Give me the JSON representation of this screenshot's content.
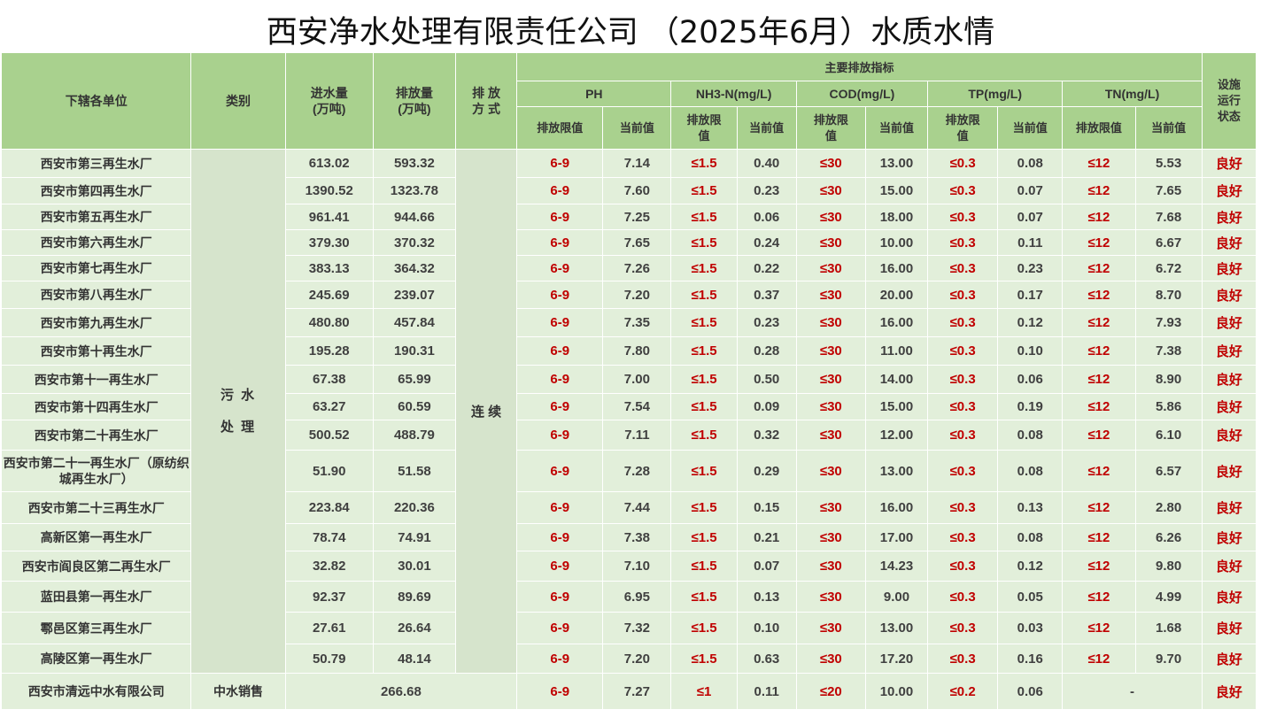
{
  "title": "西安净水处理有限责任公司 （2025年6月）水质水情",
  "headers": {
    "unit": "下辖各单位",
    "category": "类别",
    "inflow": "进水量\n(万吨)",
    "discharge": "排放量\n(万吨)",
    "method": "排 放\n方 式",
    "main_indicators": "主要排放指标",
    "status": "设施\n运行\n状态",
    "groups": [
      "PH",
      "NH3-N(mg/L)",
      "COD(mg/L)",
      "TP(mg/L)",
      "TN(mg/L)"
    ],
    "sub": [
      [
        "排放限值",
        "当前值"
      ],
      [
        "排放限\n值",
        "当前值"
      ],
      [
        "排放限\n值",
        "当前值"
      ],
      [
        "排放限\n值",
        "当前值"
      ],
      [
        "排放限值",
        "当前值"
      ]
    ]
  },
  "category_sewage": [
    "污 水",
    "处 理"
  ],
  "method_value": "连 续",
  "rows": [
    {
      "name": "西安市第三再生水厂",
      "in": "613.02",
      "out": "593.32",
      "ph_l": "6-9",
      "ph": "7.14",
      "nh_l": "≤1.5",
      "nh": "0.40",
      "cod_l": "≤30",
      "cod": "13.00",
      "tp_l": "≤0.3",
      "tp": "0.08",
      "tn_l": "≤12",
      "tn": "5.53",
      "status": "良好"
    },
    {
      "name": "西安市第四再生水厂",
      "in": "1390.52",
      "out": "1323.78",
      "ph_l": "6-9",
      "ph": "7.60",
      "nh_l": "≤1.5",
      "nh": "0.23",
      "cod_l": "≤30",
      "cod": "15.00",
      "tp_l": "≤0.3",
      "tp": "0.07",
      "tn_l": "≤12",
      "tn": "7.65",
      "status": "良好"
    },
    {
      "name": "西安市第五再生水厂",
      "in": "961.41",
      "out": "944.66",
      "ph_l": "6-9",
      "ph": "7.25",
      "nh_l": "≤1.5",
      "nh": "0.06",
      "cod_l": "≤30",
      "cod": "18.00",
      "tp_l": "≤0.3",
      "tp": "0.07",
      "tn_l": "≤12",
      "tn": "7.68",
      "status": "良好"
    },
    {
      "name": "西安市第六再生水厂",
      "in": "379.30",
      "out": "370.32",
      "ph_l": "6-9",
      "ph": "7.65",
      "nh_l": "≤1.5",
      "nh": "0.24",
      "cod_l": "≤30",
      "cod": "10.00",
      "tp_l": "≤0.3",
      "tp": "0.11",
      "tn_l": "≤12",
      "tn": "6.67",
      "status": "良好"
    },
    {
      "name": "西安市第七再生水厂",
      "in": "383.13",
      "out": "364.32",
      "ph_l": "6-9",
      "ph": "7.26",
      "nh_l": "≤1.5",
      "nh": "0.22",
      "cod_l": "≤30",
      "cod": "16.00",
      "tp_l": "≤0.3",
      "tp": "0.23",
      "tn_l": "≤12",
      "tn": "6.72",
      "status": "良好"
    },
    {
      "name": "西安市第八再生水厂",
      "in": "245.69",
      "out": "239.07",
      "ph_l": "6-9",
      "ph": "7.20",
      "nh_l": "≤1.5",
      "nh": "0.37",
      "cod_l": "≤30",
      "cod": "20.00",
      "tp_l": "≤0.3",
      "tp": "0.17",
      "tn_l": "≤12",
      "tn": "8.70",
      "status": "良好"
    },
    {
      "name": "西安市第九再生水厂",
      "in": "480.80",
      "out": "457.84",
      "ph_l": "6-9",
      "ph": "7.35",
      "nh_l": "≤1.5",
      "nh": "0.23",
      "cod_l": "≤30",
      "cod": "16.00",
      "tp_l": "≤0.3",
      "tp": "0.12",
      "tn_l": "≤12",
      "tn": "7.93",
      "status": "良好"
    },
    {
      "name": "西安市第十再生水厂",
      "in": "195.28",
      "out": "190.31",
      "ph_l": "6-9",
      "ph": "7.80",
      "nh_l": "≤1.5",
      "nh": "0.28",
      "cod_l": "≤30",
      "cod": "11.00",
      "tp_l": "≤0.3",
      "tp": "0.10",
      "tn_l": "≤12",
      "tn": "7.38",
      "status": "良好"
    },
    {
      "name": "西安市第十一再生水厂",
      "in": "67.38",
      "out": "65.99",
      "ph_l": "6-9",
      "ph": "7.00",
      "nh_l": "≤1.5",
      "nh": "0.50",
      "cod_l": "≤30",
      "cod": "14.00",
      "tp_l": "≤0.3",
      "tp": "0.06",
      "tn_l": "≤12",
      "tn": "8.90",
      "status": "良好"
    },
    {
      "name": "西安市第十四再生水厂",
      "in": "63.27",
      "out": "60.59",
      "ph_l": "6-9",
      "ph": "7.54",
      "nh_l": "≤1.5",
      "nh": "0.09",
      "cod_l": "≤30",
      "cod": "15.00",
      "tp_l": "≤0.3",
      "tp": "0.19",
      "tn_l": "≤12",
      "tn": "5.86",
      "status": "良好"
    },
    {
      "name": "西安市第二十再生水厂",
      "in": "500.52",
      "out": "488.79",
      "ph_l": "6-9",
      "ph": "7.11",
      "nh_l": "≤1.5",
      "nh": "0.32",
      "cod_l": "≤30",
      "cod": "12.00",
      "tp_l": "≤0.3",
      "tp": "0.08",
      "tn_l": "≤12",
      "tn": "6.10",
      "status": "良好"
    },
    {
      "name": "西安市第二十一再生水厂（原纺织城再生水厂）",
      "in": "51.90",
      "out": "51.58",
      "ph_l": "6-9",
      "ph": "7.28",
      "nh_l": "≤1.5",
      "nh": "0.29",
      "cod_l": "≤30",
      "cod": "13.00",
      "tp_l": "≤0.3",
      "tp": "0.08",
      "tn_l": "≤12",
      "tn": "6.57",
      "status": "良好"
    },
    {
      "name": "西安市第二十三再生水厂",
      "in": "223.84",
      "out": "220.36",
      "ph_l": "6-9",
      "ph": "7.44",
      "nh_l": "≤1.5",
      "nh": "0.15",
      "cod_l": "≤30",
      "cod": "16.00",
      "tp_l": "≤0.3",
      "tp": "0.13",
      "tn_l": "≤12",
      "tn": "2.80",
      "status": "良好"
    },
    {
      "name": "高新区第一再生水厂",
      "in": "78.74",
      "out": "74.91",
      "ph_l": "6-9",
      "ph": "7.38",
      "nh_l": "≤1.5",
      "nh": "0.21",
      "cod_l": "≤30",
      "cod": "17.00",
      "tp_l": "≤0.3",
      "tp": "0.08",
      "tn_l": "≤12",
      "tn": "6.26",
      "status": "良好"
    },
    {
      "name": "西安市阎良区第二再生水厂",
      "in": "32.82",
      "out": "30.01",
      "ph_l": "6-9",
      "ph": "7.10",
      "nh_l": "≤1.5",
      "nh": "0.07",
      "cod_l": "≤30",
      "cod": "14.23",
      "tp_l": "≤0.3",
      "tp": "0.12",
      "tn_l": "≤12",
      "tn": "9.80",
      "status": "良好"
    },
    {
      "name": "蓝田县第一再生水厂",
      "in": "92.37",
      "out": "89.69",
      "ph_l": "6-9",
      "ph": "6.95",
      "nh_l": "≤1.5",
      "nh": "0.13",
      "cod_l": "≤30",
      "cod": "9.00",
      "tp_l": "≤0.3",
      "tp": "0.05",
      "tn_l": "≤12",
      "tn": "4.99",
      "status": "良好"
    },
    {
      "name": "鄠邑区第三再生水厂",
      "in": "27.61",
      "out": "26.64",
      "ph_l": "6-9",
      "ph": "7.32",
      "nh_l": "≤1.5",
      "nh": "0.10",
      "cod_l": "≤30",
      "cod": "13.00",
      "tp_l": "≤0.3",
      "tp": "0.03",
      "tn_l": "≤12",
      "tn": "1.68",
      "status": "良好"
    },
    {
      "name": "高陵区第一再生水厂",
      "in": "50.79",
      "out": "48.14",
      "ph_l": "6-9",
      "ph": "7.20",
      "nh_l": "≤1.5",
      "nh": "0.63",
      "cod_l": "≤30",
      "cod": "17.20",
      "tp_l": "≤0.3",
      "tp": "0.16",
      "tn_l": "≤12",
      "tn": "9.70",
      "status": "良好"
    }
  ],
  "last_row": {
    "name": "西安市清远中水有限公司",
    "category": "中水销售",
    "volume": "266.68",
    "ph_l": "6-9",
    "ph": "7.27",
    "nh_l": "≤1",
    "nh": "0.11",
    "cod_l": "≤20",
    "cod": "10.00",
    "tp_l": "≤0.2",
    "tp": "0.06",
    "tn": "-",
    "status": "良好"
  }
}
